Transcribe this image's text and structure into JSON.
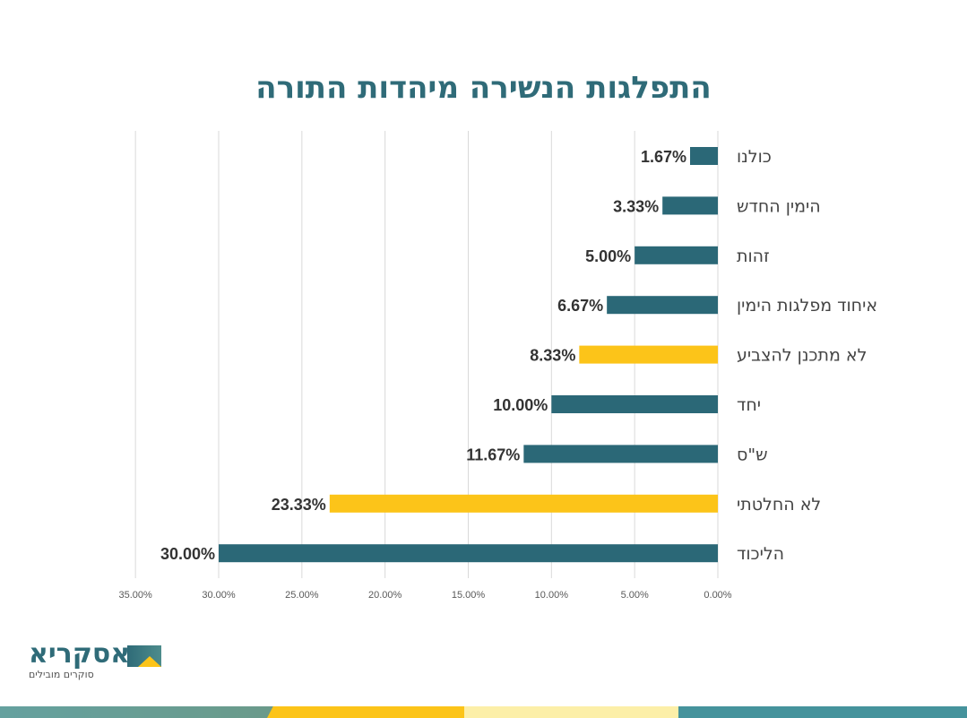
{
  "title": "התפלגות הנשירה מיהדות התורה",
  "logo": {
    "name": "אסקריא",
    "tagline": "סוקרים מובילים"
  },
  "colors": {
    "primary": "#2b6877",
    "highlight": "#fcc419",
    "grid": "#d9d9d9"
  },
  "chart_data": {
    "type": "bar",
    "orientation": "horizontal",
    "title": "התפלגות הנשירה מיהדות התורה",
    "categories": [
      "כולנו",
      "הימין החדש",
      "זהות",
      "איחוד מפלגות הימין",
      "לא מתכנן להצביע",
      "יחד",
      "ש\"ס",
      "לא החלטתי",
      "הליכוד"
    ],
    "values": [
      1.67,
      3.33,
      5.0,
      6.67,
      8.33,
      10.0,
      11.67,
      23.33,
      30.0
    ],
    "data_labels": [
      "1.67%",
      "3.33%",
      "5.00%",
      "6.67%",
      "8.33%",
      "10.00%",
      "11.67%",
      "23.33%",
      "30.00%"
    ],
    "bar_colors": [
      "#2b6877",
      "#2b6877",
      "#2b6877",
      "#2b6877",
      "#fcc419",
      "#2b6877",
      "#2b6877",
      "#fcc419",
      "#2b6877"
    ],
    "xlim": [
      0,
      35
    ],
    "x_reversed": true,
    "grid": true,
    "xticks": [
      "0.00%",
      "5.00%",
      "10.00%",
      "15.00%",
      "20.00%",
      "25.00%",
      "30.00%",
      "35.00%"
    ],
    "xtick_values": [
      0,
      5,
      10,
      15,
      20,
      25,
      30,
      35
    ]
  }
}
